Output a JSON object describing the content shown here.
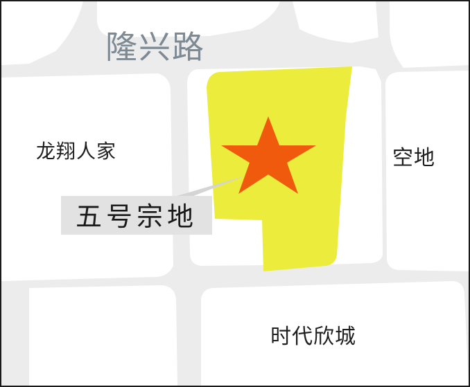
{
  "road_label": "隆兴路",
  "areas": {
    "west": "龙翔人家",
    "east": "空地",
    "south": "时代欣城"
  },
  "parcel": {
    "label": "五号宗地",
    "fill_color": "#ecec3c",
    "marker": "star-icon",
    "marker_color": "#ef5a0c"
  },
  "colors": {
    "block": "#ffffff",
    "road": "#ececec",
    "callout_box": "#e2e2e2"
  }
}
